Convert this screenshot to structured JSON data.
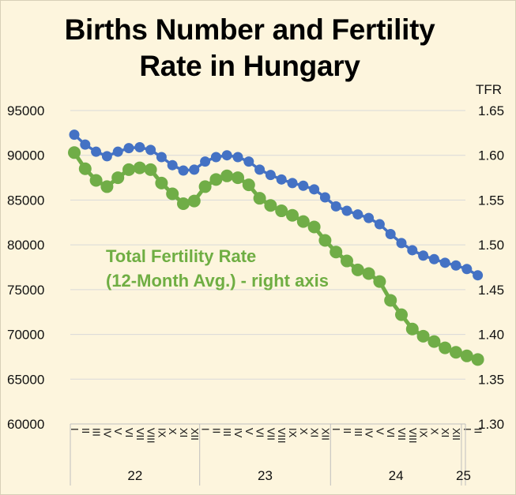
{
  "title": "Births Number and Fertility\nRate in Hungary",
  "chart_data": {
    "type": "line",
    "title": "Births Number and Fertility Rate in Hungary",
    "left_axis": {
      "ylim": [
        60000,
        95000
      ],
      "ticks": [
        "95000",
        "90000",
        "85000",
        "80000",
        "75000",
        "70000",
        "65000",
        "60000"
      ]
    },
    "right_axis": {
      "label": "TFR",
      "ylim": [
        1.3,
        1.65
      ],
      "ticks": [
        "1.65",
        "1.60",
        "1.55",
        "1.50",
        "1.45",
        "1.40",
        "1.35",
        "1.30"
      ]
    },
    "month_labels": [
      "I",
      "II",
      "III",
      "IV",
      "V",
      "VI",
      "VII",
      "VIII",
      "IX",
      "X",
      "XI",
      "XII"
    ],
    "years": [
      "22",
      "23",
      "24",
      "25"
    ],
    "year_month_counts": [
      12,
      12,
      12,
      2
    ],
    "annotation": "Total Fertility Rate\n(12-Month Avg.) - right axis",
    "series": [
      {
        "name": "Births Number",
        "axis": "left",
        "color": "#4472c4",
        "values": [
          92300,
          91200,
          90400,
          89900,
          90400,
          90800,
          90900,
          90600,
          89800,
          88900,
          88300,
          88400,
          89300,
          89800,
          90000,
          89800,
          89300,
          88400,
          87800,
          87300,
          86900,
          86600,
          86200,
          85300,
          84300,
          83800,
          83400,
          83000,
          82300,
          81200,
          80200,
          79400,
          78800,
          78400,
          78000,
          77700,
          77300,
          76600
        ]
      },
      {
        "name": "Total Fertility Rate (12-Month Avg.)",
        "axis": "right",
        "color": "#70ad47",
        "values": [
          1.603,
          1.585,
          1.572,
          1.565,
          1.575,
          1.584,
          1.586,
          1.584,
          1.569,
          1.557,
          1.546,
          1.549,
          1.565,
          1.573,
          1.577,
          1.575,
          1.567,
          1.552,
          1.544,
          1.538,
          1.533,
          1.526,
          1.52,
          1.505,
          1.492,
          1.482,
          1.472,
          1.468,
          1.459,
          1.438,
          1.422,
          1.406,
          1.398,
          1.392,
          1.385,
          1.38,
          1.376,
          1.372
        ]
      }
    ]
  }
}
